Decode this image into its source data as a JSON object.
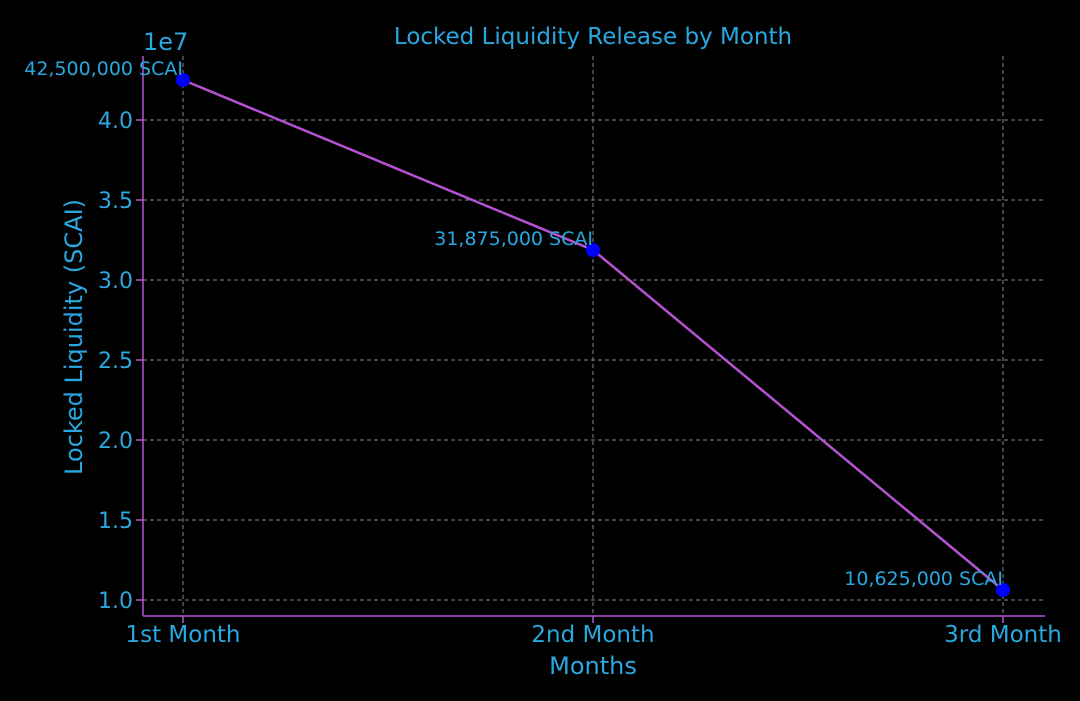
{
  "chart_data": {
    "type": "line",
    "title": "Locked Liquidity Release by Month",
    "xlabel": "Months",
    "ylabel": "Locked Liquidity (SCAI)",
    "y_offset_label": "1e7",
    "categories": [
      "1st Month",
      "2nd Month",
      "3rd Month"
    ],
    "series": [
      {
        "values": [
          42500000,
          31875000,
          10625000
        ],
        "point_labels": [
          "42,500,000 SCAI",
          "31,875,000 SCAI",
          "10,625,000 SCAI"
        ]
      }
    ],
    "y_ticks": [
      1.0,
      1.5,
      2.0,
      2.5,
      3.0,
      3.5,
      4.0
    ],
    "y_tick_labels": [
      "1.0",
      "1.5",
      "2.0",
      "2.5",
      "3.0",
      "3.5",
      "4.0"
    ],
    "y_tick_scale": 10000000,
    "ylim": [
      9000000,
      44000000
    ],
    "grid": true,
    "colors": {
      "background": "#000000",
      "text": "#29a8e0",
      "line": "#b552d1",
      "marker": "#0000ff",
      "axis": "#b552d1",
      "grid": "#888888"
    }
  }
}
